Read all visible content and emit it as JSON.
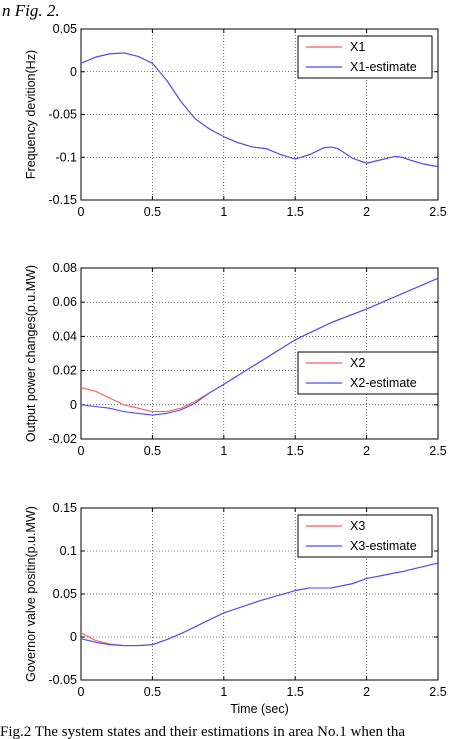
{
  "header_fragment": "n Fig. 2.",
  "caption": "Fig.2 The system states and their estimations in area No.1 when tha",
  "colors": {
    "actual": "#ff5a5a",
    "estimate": "#4a4aff",
    "axis": "#000000",
    "grid": "#000000"
  },
  "chart_data": [
    {
      "type": "line",
      "ylabel": "Frequency devition(Hz)",
      "xlabel": "",
      "xlim": [
        0,
        2.5
      ],
      "ylim": [
        -0.15,
        0.05
      ],
      "xticks": [
        "0",
        "0.5",
        "1",
        "1.5",
        "2",
        "2.5"
      ],
      "yticks": [
        "0.05",
        "0",
        "-0.05",
        "-0.1",
        "-0.15"
      ],
      "grid": true,
      "legend_position": "top-right",
      "series": [
        {
          "name": "X1",
          "x": [
            0,
            0.1,
            0.2,
            0.3,
            0.4,
            0.5,
            0.6,
            0.7,
            0.8,
            0.9,
            1.0,
            1.1,
            1.2,
            1.3,
            1.4,
            1.5,
            1.6,
            1.7,
            1.75,
            1.8,
            1.9,
            2.0,
            2.1,
            2.2,
            2.25,
            2.3,
            2.4,
            2.5
          ],
          "y": [
            0.01,
            0.017,
            0.021,
            0.022,
            0.018,
            0.01,
            -0.01,
            -0.035,
            -0.055,
            -0.067,
            -0.076,
            -0.083,
            -0.088,
            -0.09,
            -0.097,
            -0.102,
            -0.097,
            -0.089,
            -0.088,
            -0.09,
            -0.101,
            -0.107,
            -0.103,
            -0.099,
            -0.1,
            -0.103,
            -0.108,
            -0.111
          ]
        },
        {
          "name": "X1-estimate",
          "x": [
            0,
            0.1,
            0.2,
            0.3,
            0.4,
            0.5,
            0.6,
            0.7,
            0.8,
            0.9,
            1.0,
            1.1,
            1.2,
            1.3,
            1.4,
            1.5,
            1.6,
            1.7,
            1.75,
            1.8,
            1.9,
            2.0,
            2.1,
            2.2,
            2.25,
            2.3,
            2.4,
            2.5
          ],
          "y": [
            0.01,
            0.017,
            0.021,
            0.022,
            0.018,
            0.01,
            -0.01,
            -0.035,
            -0.055,
            -0.067,
            -0.076,
            -0.083,
            -0.088,
            -0.09,
            -0.097,
            -0.102,
            -0.097,
            -0.089,
            -0.088,
            -0.09,
            -0.101,
            -0.107,
            -0.103,
            -0.099,
            -0.1,
            -0.103,
            -0.108,
            -0.111
          ]
        }
      ]
    },
    {
      "type": "line",
      "ylabel": "Output power changes(p.u.MW)",
      "xlabel": "",
      "xlim": [
        0,
        2.5
      ],
      "ylim": [
        -0.02,
        0.08
      ],
      "xticks": [
        "0",
        "0.5",
        "1",
        "1.5",
        "2",
        "2.5"
      ],
      "yticks": [
        "0.08",
        "0.06",
        "0.04",
        "0.02",
        "0",
        "-0.02"
      ],
      "grid": true,
      "legend_position": "middle-right",
      "series": [
        {
          "name": "X2",
          "x": [
            0,
            0.1,
            0.2,
            0.3,
            0.4,
            0.5,
            0.6,
            0.7,
            0.8,
            0.9,
            1.0,
            1.25,
            1.5,
            1.75,
            2.0,
            2.25,
            2.5
          ],
          "y": [
            0.01,
            0.008,
            0.004,
            0.0,
            -0.002,
            -0.004,
            -0.004,
            -0.002,
            0.002,
            0.007,
            0.012,
            0.025,
            0.038,
            0.048,
            0.056,
            0.065,
            0.074
          ]
        },
        {
          "name": "X2-estimate",
          "x": [
            0,
            0.1,
            0.2,
            0.3,
            0.4,
            0.5,
            0.6,
            0.7,
            0.8,
            0.9,
            1.0,
            1.25,
            1.5,
            1.75,
            2.0,
            2.25,
            2.5
          ],
          "y": [
            0.0,
            -0.001,
            -0.002,
            -0.004,
            -0.005,
            -0.006,
            -0.005,
            -0.003,
            0.001,
            0.007,
            0.012,
            0.025,
            0.038,
            0.048,
            0.056,
            0.065,
            0.074
          ]
        }
      ]
    },
    {
      "type": "line",
      "ylabel": "Governor valve positin(p.u.MW)",
      "xlabel": "Time (sec)",
      "xlim": [
        0,
        2.5
      ],
      "ylim": [
        -0.05,
        0.15
      ],
      "xticks": [
        "0",
        "0.5",
        "1",
        "1.5",
        "2",
        "2.5"
      ],
      "yticks": [
        "0.15",
        "0.1",
        "0.05",
        "0",
        "-0.05"
      ],
      "grid": true,
      "legend_position": "top-right",
      "series": [
        {
          "name": "X3",
          "x": [
            0,
            0.1,
            0.2,
            0.3,
            0.4,
            0.5,
            0.6,
            0.7,
            0.8,
            0.9,
            1.0,
            1.25,
            1.5,
            1.6,
            1.75,
            1.9,
            2.0,
            2.25,
            2.5
          ],
          "y": [
            0.005,
            -0.004,
            -0.008,
            -0.01,
            -0.01,
            -0.009,
            -0.003,
            0.004,
            0.012,
            0.02,
            0.028,
            0.042,
            0.054,
            0.057,
            0.057,
            0.062,
            0.068,
            0.076,
            0.086
          ]
        },
        {
          "name": "X3-estimate",
          "x": [
            0,
            0.1,
            0.2,
            0.3,
            0.4,
            0.5,
            0.6,
            0.7,
            0.8,
            0.9,
            1.0,
            1.25,
            1.5,
            1.6,
            1.75,
            1.9,
            2.0,
            2.25,
            2.5
          ],
          "y": [
            -0.002,
            -0.006,
            -0.009,
            -0.01,
            -0.01,
            -0.009,
            -0.003,
            0.004,
            0.012,
            0.02,
            0.028,
            0.042,
            0.054,
            0.057,
            0.057,
            0.062,
            0.068,
            0.076,
            0.086
          ]
        }
      ]
    }
  ]
}
